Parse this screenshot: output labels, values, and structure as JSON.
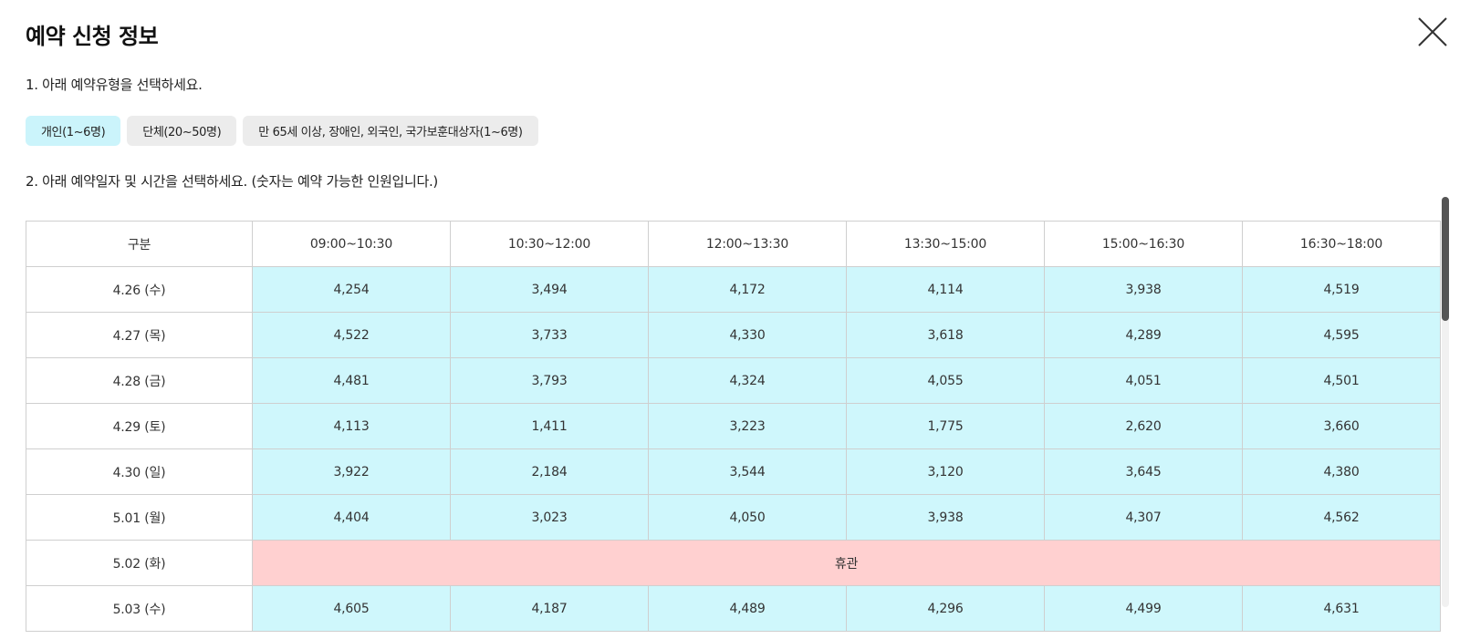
{
  "header": {
    "title": "예약 신청 정보",
    "close_icon": "close-icon"
  },
  "step1": {
    "label": "1. 아래 예약유형을 선택하세요.",
    "types": [
      {
        "label": "개인(1~6명)",
        "active": true
      },
      {
        "label": "단체(20~50명)",
        "active": false
      },
      {
        "label": "만 65세 이상, 장애인, 외국인, 국가보훈대상자(1~6명)",
        "active": false
      }
    ]
  },
  "step2": {
    "label": "2. 아래 예약일자 및 시간을 선택하세요. (숫자는 예약 가능한 인원입니다.)"
  },
  "table": {
    "headers": [
      "구분",
      "09:00~10:30",
      "10:30~12:00",
      "12:00~13:30",
      "13:30~15:00",
      "15:00~16:30",
      "16:30~18:00"
    ],
    "rows": [
      {
        "date": "4.26 (수)",
        "cells": [
          "4,254",
          "3,494",
          "4,172",
          "4,114",
          "3,938",
          "4,519"
        ]
      },
      {
        "date": "4.27 (목)",
        "cells": [
          "4,522",
          "3,733",
          "4,330",
          "3,618",
          "4,289",
          "4,595"
        ]
      },
      {
        "date": "4.28 (금)",
        "cells": [
          "4,481",
          "3,793",
          "4,324",
          "4,055",
          "4,051",
          "4,501"
        ]
      },
      {
        "date": "4.29 (토)",
        "cells": [
          "4,113",
          "1,411",
          "3,223",
          "1,775",
          "2,620",
          "3,660"
        ]
      },
      {
        "date": "4.30 (일)",
        "cells": [
          "3,922",
          "2,184",
          "3,544",
          "3,120",
          "3,645",
          "4,380"
        ]
      },
      {
        "date": "5.01 (월)",
        "cells": [
          "4,404",
          "3,023",
          "4,050",
          "3,938",
          "4,307",
          "4,562"
        ]
      },
      {
        "date": "5.02 (화)",
        "closed": "휴관"
      },
      {
        "date": "5.03 (수)",
        "cells": [
          "4,605",
          "4,187",
          "4,489",
          "4,296",
          "4,499",
          "4,631"
        ]
      }
    ]
  },
  "colors": {
    "available": "#cff7fc",
    "closed": "#ffd0d0",
    "active_type": "#cbf4fb"
  }
}
